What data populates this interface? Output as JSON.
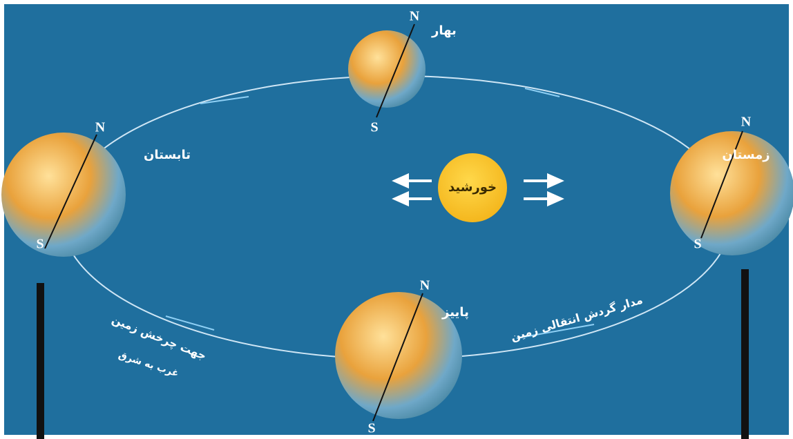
{
  "sun": {
    "label": "خورشید"
  },
  "globes": [
    {
      "season": "بهار",
      "north": "N",
      "south": "S"
    },
    {
      "season": "تابستان",
      "north": "N",
      "south": "S"
    },
    {
      "season": "زمستان",
      "north": "N",
      "south": "S"
    },
    {
      "season": "پاییز",
      "north": "N",
      "south": "S"
    }
  ],
  "orbit_label": "مدار گردش انتقالی زمین",
  "rotation_label": "جهت چرخش زمین",
  "rotation_direction": "غرب به شرق"
}
